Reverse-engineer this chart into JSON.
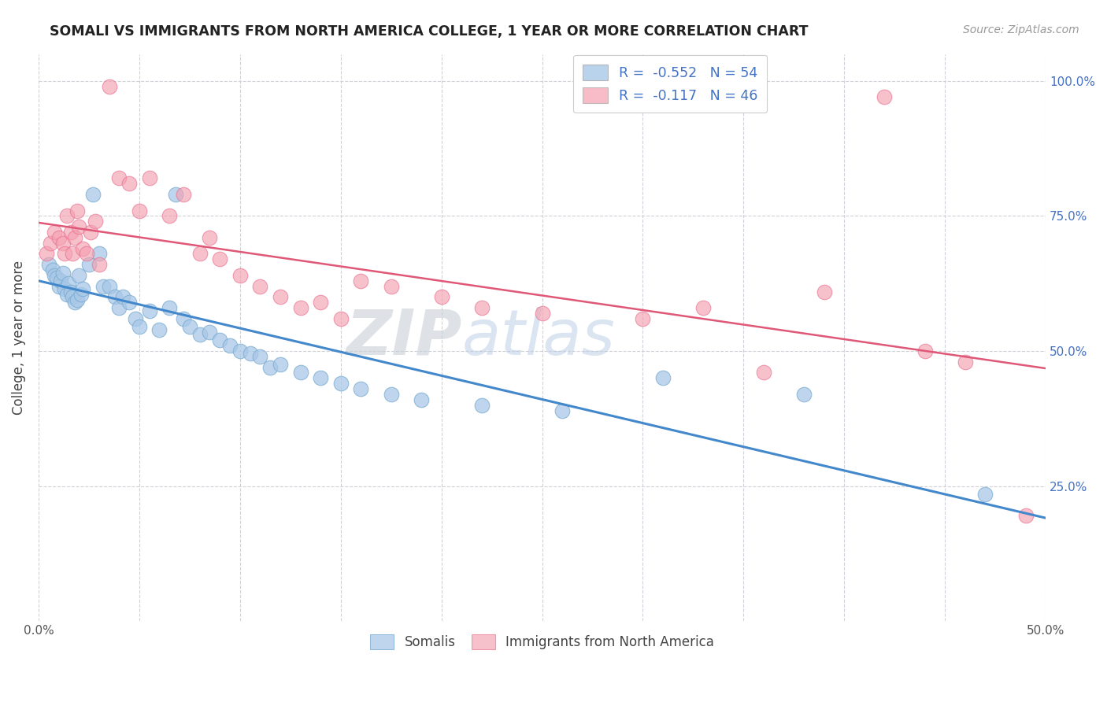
{
  "title": "SOMALI VS IMMIGRANTS FROM NORTH AMERICA COLLEGE, 1 YEAR OR MORE CORRELATION CHART",
  "source": "Source: ZipAtlas.com",
  "ylabel": "College, 1 year or more",
  "xlim": [
    0.0,
    0.5
  ],
  "ylim": [
    0.0,
    1.05
  ],
  "ytick_labels_right": [
    "25.0%",
    "50.0%",
    "75.0%",
    "100.0%"
  ],
  "ytick_vals_right": [
    0.25,
    0.5,
    0.75,
    1.0
  ],
  "legend_r_blue": "R =  -0.552   N = 54",
  "legend_r_pink": "R =  -0.117   N = 46",
  "blue_color": "#a8c8e8",
  "pink_color": "#f4a0b0",
  "blue_edge_color": "#7aabcf",
  "pink_edge_color": "#e87090",
  "blue_line_color": "#4488cc",
  "pink_line_color": "#e05878",
  "watermark_zip": "ZIP",
  "watermark_atlas": "atlas",
  "somali_x": [
    0.005,
    0.007,
    0.008,
    0.009,
    0.01,
    0.011,
    0.012,
    0.013,
    0.014,
    0.015,
    0.016,
    0.017,
    0.018,
    0.019,
    0.02,
    0.021,
    0.022,
    0.025,
    0.027,
    0.03,
    0.032,
    0.035,
    0.038,
    0.04,
    0.042,
    0.045,
    0.048,
    0.05,
    0.055,
    0.06,
    0.065,
    0.068,
    0.072,
    0.075,
    0.08,
    0.085,
    0.09,
    0.095,
    0.1,
    0.105,
    0.11,
    0.115,
    0.12,
    0.13,
    0.14,
    0.15,
    0.16,
    0.175,
    0.19,
    0.22,
    0.26,
    0.31,
    0.38,
    0.47
  ],
  "somali_y": [
    0.66,
    0.65,
    0.64,
    0.635,
    0.62,
    0.63,
    0.645,
    0.615,
    0.605,
    0.625,
    0.61,
    0.6,
    0.59,
    0.595,
    0.64,
    0.605,
    0.615,
    0.66,
    0.79,
    0.68,
    0.62,
    0.62,
    0.6,
    0.58,
    0.6,
    0.59,
    0.56,
    0.545,
    0.575,
    0.54,
    0.58,
    0.79,
    0.56,
    0.545,
    0.53,
    0.535,
    0.52,
    0.51,
    0.5,
    0.495,
    0.49,
    0.47,
    0.475,
    0.46,
    0.45,
    0.44,
    0.43,
    0.42,
    0.41,
    0.4,
    0.39,
    0.45,
    0.42,
    0.235
  ],
  "northam_x": [
    0.004,
    0.006,
    0.008,
    0.01,
    0.012,
    0.013,
    0.014,
    0.016,
    0.017,
    0.018,
    0.019,
    0.02,
    0.022,
    0.024,
    0.026,
    0.028,
    0.03,
    0.035,
    0.04,
    0.045,
    0.05,
    0.055,
    0.065,
    0.072,
    0.08,
    0.085,
    0.09,
    0.1,
    0.11,
    0.12,
    0.13,
    0.14,
    0.15,
    0.16,
    0.175,
    0.2,
    0.22,
    0.25,
    0.3,
    0.33,
    0.36,
    0.39,
    0.42,
    0.44,
    0.46,
    0.49
  ],
  "northam_y": [
    0.68,
    0.7,
    0.72,
    0.71,
    0.7,
    0.68,
    0.75,
    0.72,
    0.68,
    0.71,
    0.76,
    0.73,
    0.69,
    0.68,
    0.72,
    0.74,
    0.66,
    0.99,
    0.82,
    0.81,
    0.76,
    0.82,
    0.75,
    0.79,
    0.68,
    0.71,
    0.67,
    0.64,
    0.62,
    0.6,
    0.58,
    0.59,
    0.56,
    0.63,
    0.62,
    0.6,
    0.58,
    0.57,
    0.56,
    0.58,
    0.46,
    0.61,
    0.97,
    0.5,
    0.48,
    0.195
  ],
  "grid_color": "#d0d0d8",
  "background_color": "#ffffff"
}
